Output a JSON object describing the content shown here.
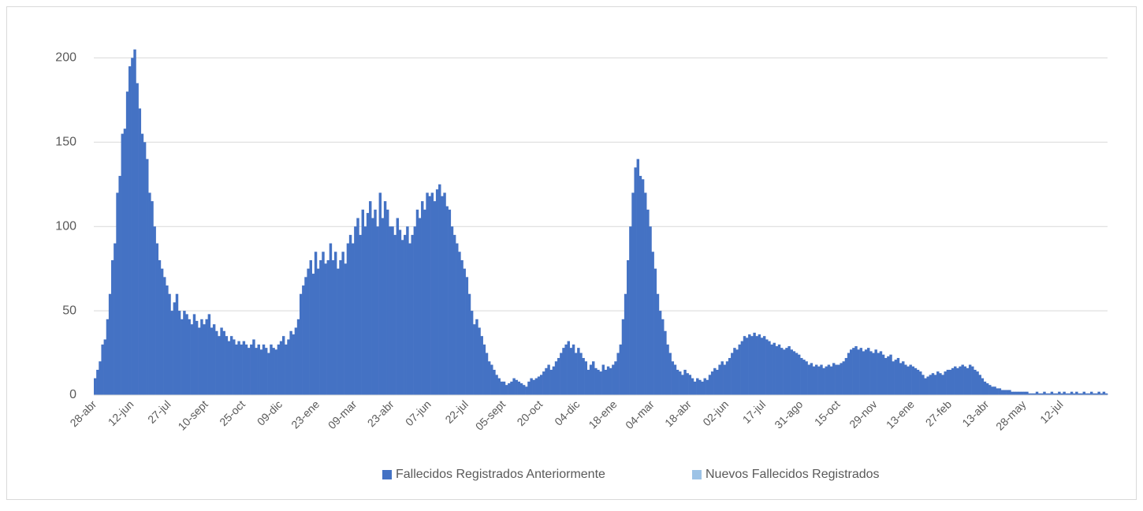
{
  "chart_data": {
    "type": "bar",
    "stacked": true,
    "categories": [
      "28-abr",
      null,
      null,
      null,
      null,
      null,
      null,
      null,
      null,
      null,
      null,
      null,
      null,
      null,
      null,
      "12-jun",
      null,
      null,
      null,
      null,
      null,
      null,
      null,
      null,
      null,
      null,
      null,
      null,
      null,
      null,
      "27-jul",
      null,
      null,
      null,
      null,
      null,
      null,
      null,
      null,
      null,
      null,
      null,
      null,
      null,
      null,
      "10-sept",
      null,
      null,
      null,
      null,
      null,
      null,
      null,
      null,
      null,
      null,
      null,
      null,
      null,
      null,
      "25-oct",
      null,
      null,
      null,
      null,
      null,
      null,
      null,
      null,
      null,
      null,
      null,
      null,
      null,
      null,
      "09-dic",
      null,
      null,
      null,
      null,
      null,
      null,
      null,
      null,
      null,
      null,
      null,
      null,
      null,
      null,
      "23-ene",
      null,
      null,
      null,
      null,
      null,
      null,
      null,
      null,
      null,
      null,
      null,
      null,
      null,
      null,
      "09-mar",
      null,
      null,
      null,
      null,
      null,
      null,
      null,
      null,
      null,
      null,
      null,
      null,
      null,
      null,
      "23-abr",
      null,
      null,
      null,
      null,
      null,
      null,
      null,
      null,
      null,
      null,
      null,
      null,
      null,
      null,
      "07-jun",
      null,
      null,
      null,
      null,
      null,
      null,
      null,
      null,
      null,
      null,
      null,
      null,
      null,
      null,
      "22-jul",
      null,
      null,
      null,
      null,
      null,
      null,
      null,
      null,
      null,
      null,
      null,
      null,
      null,
      null,
      "05-sept",
      null,
      null,
      null,
      null,
      null,
      null,
      null,
      null,
      null,
      null,
      null,
      null,
      null,
      null,
      "20-oct",
      null,
      null,
      null,
      null,
      null,
      null,
      null,
      null,
      null,
      null,
      null,
      null,
      null,
      null,
      "04-dic",
      null,
      null,
      null,
      null,
      null,
      null,
      null,
      null,
      null,
      null,
      null,
      null,
      null,
      null,
      "18-ene",
      null,
      null,
      null,
      null,
      null,
      null,
      null,
      null,
      null,
      null,
      null,
      null,
      null,
      null,
      "04-mar",
      null,
      null,
      null,
      null,
      null,
      null,
      null,
      null,
      null,
      null,
      null,
      null,
      null,
      null,
      "18-abr",
      null,
      null,
      null,
      null,
      null,
      null,
      null,
      null,
      null,
      null,
      null,
      null,
      null,
      null,
      "02-jun",
      null,
      null,
      null,
      null,
      null,
      null,
      null,
      null,
      null,
      null,
      null,
      null,
      null,
      null,
      "17-jul",
      null,
      null,
      null,
      null,
      null,
      null,
      null,
      null,
      null,
      null,
      null,
      null,
      null,
      null,
      "31-ago",
      null,
      null,
      null,
      null,
      null,
      null,
      null,
      null,
      null,
      null,
      null,
      null,
      null,
      null,
      "15-oct",
      null,
      null,
      null,
      null,
      null,
      null,
      null,
      null,
      null,
      null,
      null,
      null,
      null,
      null,
      "29-nov",
      null,
      null,
      null,
      null,
      null,
      null,
      null,
      null,
      null,
      null,
      null,
      null,
      null,
      null,
      "13-ene",
      null,
      null,
      null,
      null,
      null,
      null,
      null,
      null,
      null,
      null,
      null,
      null,
      null,
      null,
      "27-feb",
      null,
      null,
      null,
      null,
      null,
      null,
      null,
      null,
      null,
      null,
      null,
      null,
      null,
      null,
      "13-abr",
      null,
      null,
      null,
      null,
      null,
      null,
      null,
      null,
      null,
      null,
      null,
      null,
      null,
      null,
      "28-may",
      null,
      null,
      null,
      null,
      null,
      null,
      null,
      null,
      null,
      null,
      null,
      null,
      null,
      null,
      "12-jul",
      null,
      null,
      null,
      null,
      null,
      null,
      null,
      null,
      null,
      null,
      null,
      null,
      null,
      null,
      null,
      null,
      null,
      null
    ],
    "series": [
      {
        "name": "Fallecidos Registrados Anteriormente",
        "color": "#4472c4",
        "values": [
          10,
          15,
          20,
          30,
          33,
          45,
          60,
          80,
          90,
          120,
          130,
          155,
          158,
          180,
          195,
          200,
          205,
          185,
          170,
          155,
          150,
          140,
          120,
          115,
          100,
          90,
          80,
          75,
          70,
          65,
          60,
          50,
          55,
          60,
          50,
          45,
          50,
          48,
          45,
          42,
          48,
          44,
          40,
          45,
          42,
          45,
          48,
          40,
          42,
          38,
          35,
          40,
          38,
          35,
          32,
          35,
          33,
          30,
          32,
          30,
          32,
          30,
          28,
          30,
          33,
          28,
          30,
          27,
          30,
          28,
          25,
          30,
          28,
          27,
          30,
          32,
          35,
          30,
          33,
          38,
          36,
          40,
          45,
          60,
          65,
          70,
          75,
          80,
          72,
          85,
          75,
          80,
          85,
          78,
          80,
          90,
          80,
          85,
          75,
          80,
          85,
          78,
          90,
          95,
          90,
          100,
          105,
          95,
          110,
          100,
          108,
          115,
          105,
          110,
          100,
          120,
          105,
          115,
          110,
          100,
          100,
          95,
          105,
          98,
          92,
          95,
          100,
          90,
          95,
          100,
          110,
          105,
          115,
          110,
          120,
          118,
          120,
          115,
          122,
          125,
          118,
          120,
          112,
          110,
          100,
          95,
          90,
          85,
          80,
          75,
          70,
          60,
          50,
          42,
          45,
          40,
          35,
          30,
          25,
          20,
          18,
          15,
          12,
          10,
          8,
          8,
          6,
          7,
          8,
          10,
          9,
          8,
          7,
          6,
          5,
          8,
          10,
          9,
          10,
          11,
          12,
          14,
          16,
          18,
          15,
          17,
          20,
          22,
          25,
          28,
          30,
          32,
          28,
          30,
          25,
          28,
          25,
          22,
          20,
          15,
          18,
          20,
          16,
          15,
          14,
          18,
          15,
          17,
          16,
          18,
          20,
          25,
          30,
          45,
          60,
          80,
          100,
          120,
          135,
          140,
          130,
          128,
          120,
          110,
          100,
          85,
          75,
          60,
          50,
          45,
          38,
          30,
          25,
          20,
          18,
          15,
          14,
          12,
          15,
          13,
          12,
          10,
          8,
          10,
          9,
          8,
          10,
          9,
          12,
          14,
          16,
          15,
          18,
          20,
          18,
          20,
          22,
          25,
          28,
          27,
          30,
          32,
          35,
          34,
          36,
          35,
          37,
          35,
          36,
          34,
          35,
          33,
          32,
          30,
          31,
          29,
          30,
          28,
          27,
          28,
          29,
          27,
          26,
          25,
          24,
          22,
          21,
          20,
          18,
          19,
          17,
          18,
          17,
          18,
          16,
          17,
          18,
          17,
          19,
          18,
          18,
          19,
          20,
          22,
          25,
          27,
          28,
          29,
          27,
          28,
          26,
          27,
          28,
          26,
          25,
          27,
          25,
          26,
          24,
          22,
          23,
          24,
          20,
          21,
          22,
          19,
          20,
          18,
          17,
          18,
          17,
          16,
          15,
          14,
          12,
          10,
          11,
          12,
          13,
          12,
          14,
          13,
          12,
          14,
          15,
          15,
          16,
          17,
          16,
          17,
          18,
          17,
          16,
          18,
          17,
          15,
          14,
          12,
          10,
          8,
          7,
          6,
          5,
          5,
          4,
          4,
          3,
          3,
          3,
          3,
          2,
          2,
          2,
          2,
          2,
          2,
          2,
          1,
          1,
          1,
          2,
          1,
          1,
          2,
          1,
          1,
          2,
          1,
          1,
          2,
          1,
          2,
          1,
          1,
          2,
          1,
          2,
          1,
          1,
          2,
          1,
          1,
          2,
          1,
          1,
          2,
          1,
          2,
          1
        ]
      },
      {
        "name": "Nuevos Fallecidos Registrados",
        "color": "#9dc3e6",
        "values": [
          0,
          0,
          0,
          0,
          0,
          0,
          0,
          0,
          0,
          0,
          0,
          0,
          0,
          0,
          0,
          0,
          0,
          0,
          0,
          0,
          0,
          0,
          0,
          0,
          0,
          0,
          0,
          0,
          0,
          0,
          0,
          0,
          0,
          0,
          0,
          0,
          0,
          0,
          0,
          0,
          0,
          0,
          0,
          0,
          0,
          0,
          0,
          0,
          0,
          0,
          0,
          0,
          0,
          0,
          0,
          0,
          0,
          0,
          0,
          0,
          0,
          0,
          0,
          0,
          0,
          0,
          0,
          0,
          0,
          0,
          0,
          0,
          0,
          0,
          0,
          0,
          0,
          0,
          0,
          0,
          0,
          0,
          0,
          0,
          0,
          0,
          0,
          0,
          0,
          0,
          0,
          0,
          0,
          0,
          0,
          0,
          0,
          0,
          0,
          0,
          0,
          0,
          0,
          0,
          0,
          0,
          0,
          0,
          0,
          0,
          0,
          0,
          0,
          0,
          0,
          0,
          0,
          0,
          0,
          0,
          0,
          0,
          0,
          0,
          0,
          0,
          0,
          0,
          0,
          0,
          0,
          0,
          0,
          0,
          0,
          0,
          0,
          0,
          0,
          0,
          0,
          0,
          0,
          0,
          0,
          0,
          0,
          0,
          0,
          0,
          0,
          0,
          0,
          0,
          0,
          0,
          0,
          0,
          0,
          0,
          0,
          0,
          0,
          0,
          0,
          0,
          0,
          0,
          0,
          0,
          0,
          0,
          0,
          0,
          0,
          0,
          0,
          0,
          0,
          0,
          0,
          0,
          0,
          0,
          0,
          0,
          0,
          0,
          0,
          0,
          0,
          0,
          0,
          0,
          0,
          0,
          0,
          0,
          0,
          0,
          0,
          0,
          0,
          0,
          0,
          0,
          0,
          0,
          0,
          0,
          0,
          0,
          0,
          0,
          0,
          0,
          0,
          0,
          0,
          0,
          0,
          0,
          0,
          0,
          0,
          0,
          0,
          0,
          0,
          0,
          0,
          0,
          0,
          0,
          0,
          0,
          0,
          0,
          0,
          0,
          0,
          0,
          0,
          0,
          0,
          0,
          0,
          0,
          0,
          0,
          0,
          0,
          0,
          0,
          0,
          0,
          0,
          0,
          0,
          0,
          0,
          0,
          0,
          0,
          0,
          0,
          0,
          0,
          0,
          0,
          0,
          0,
          0,
          0,
          0,
          0,
          0,
          0,
          0,
          0,
          0,
          0,
          0,
          0,
          0,
          0,
          0,
          0,
          0,
          0,
          0,
          0,
          0,
          0,
          0,
          0,
          0,
          0,
          0,
          0,
          0,
          0,
          0,
          0,
          0,
          0,
          0,
          0,
          0,
          0,
          0,
          0,
          0,
          0,
          0,
          0,
          0,
          0,
          0,
          0,
          0,
          0,
          0,
          0,
          0,
          0,
          0,
          0,
          0,
          0,
          0,
          0,
          0,
          0,
          0,
          0,
          0,
          0,
          0,
          0,
          0,
          0,
          0,
          0,
          0,
          0,
          0,
          0,
          0,
          0,
          0,
          0,
          0,
          0,
          0,
          0,
          0,
          0,
          0,
          0,
          0,
          0,
          0,
          0,
          0,
          0,
          0,
          0,
          0,
          0,
          0,
          0,
          0,
          0,
          0,
          0,
          0,
          0,
          0,
          0,
          0,
          0,
          0,
          0,
          0,
          0,
          0,
          0,
          0,
          0,
          0,
          0,
          0,
          0,
          0,
          0,
          0,
          0,
          0,
          0,
          0,
          0,
          0,
          0,
          0,
          0,
          0,
          0,
          0
        ]
      }
    ],
    "ylim": [
      0,
      210
    ],
    "yticks": [
      0,
      50,
      100,
      150,
      200
    ],
    "grid": true,
    "legend": "bottom"
  }
}
